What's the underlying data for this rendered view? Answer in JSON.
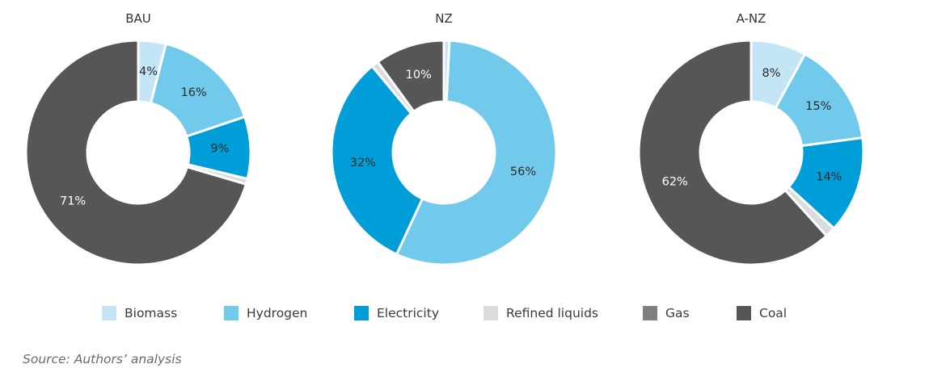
{
  "chart_data": [
    {
      "type": "pie",
      "title": "BAU",
      "slices": [
        {
          "category": "Biomass",
          "value": 4,
          "label": "4%"
        },
        {
          "category": "Hydrogen",
          "value": 16,
          "label": "16%"
        },
        {
          "category": "Electricity",
          "value": 9,
          "label": "9%"
        },
        {
          "category": "Refined liquids",
          "value": 0.8,
          "label": ""
        },
        {
          "category": "Gas",
          "value": 0,
          "label": ""
        },
        {
          "category": "Coal",
          "value": 71,
          "label": "71%"
        }
      ]
    },
    {
      "type": "pie",
      "title": "NZ",
      "slices": [
        {
          "category": "Biomass",
          "value": 0.8,
          "label": ""
        },
        {
          "category": "Hydrogen",
          "value": 56,
          "label": "56%"
        },
        {
          "category": "Electricity",
          "value": 32,
          "label": "32%"
        },
        {
          "category": "Refined liquids",
          "value": 1,
          "label": ""
        },
        {
          "category": "Gas",
          "value": 0,
          "label": ""
        },
        {
          "category": "Coal",
          "value": 10,
          "label": "10%"
        }
      ]
    },
    {
      "type": "pie",
      "title": "A-NZ",
      "slices": [
        {
          "category": "Biomass",
          "value": 8,
          "label": "8%"
        },
        {
          "category": "Hydrogen",
          "value": 15,
          "label": "15%"
        },
        {
          "category": "Electricity",
          "value": 14,
          "label": "14%"
        },
        {
          "category": "Refined liquids",
          "value": 1.5,
          "label": ""
        },
        {
          "category": "Gas",
          "value": 0,
          "label": ""
        },
        {
          "category": "Coal",
          "value": 62,
          "label": "62%"
        }
      ]
    }
  ],
  "legend": {
    "placement": "bottom",
    "items": [
      {
        "name": "Biomass",
        "color": "#c3e5f6"
      },
      {
        "name": "Hydrogen",
        "color": "#71c9ec"
      },
      {
        "name": "Electricity",
        "color": "#009ed8"
      },
      {
        "name": "Refined liquids",
        "color": "#dadbdd"
      },
      {
        "name": "Gas",
        "color": "#7f7f7f"
      },
      {
        "name": "Coal",
        "color": "#565656"
      }
    ]
  },
  "source_note": "Source: Authors’ analysis"
}
